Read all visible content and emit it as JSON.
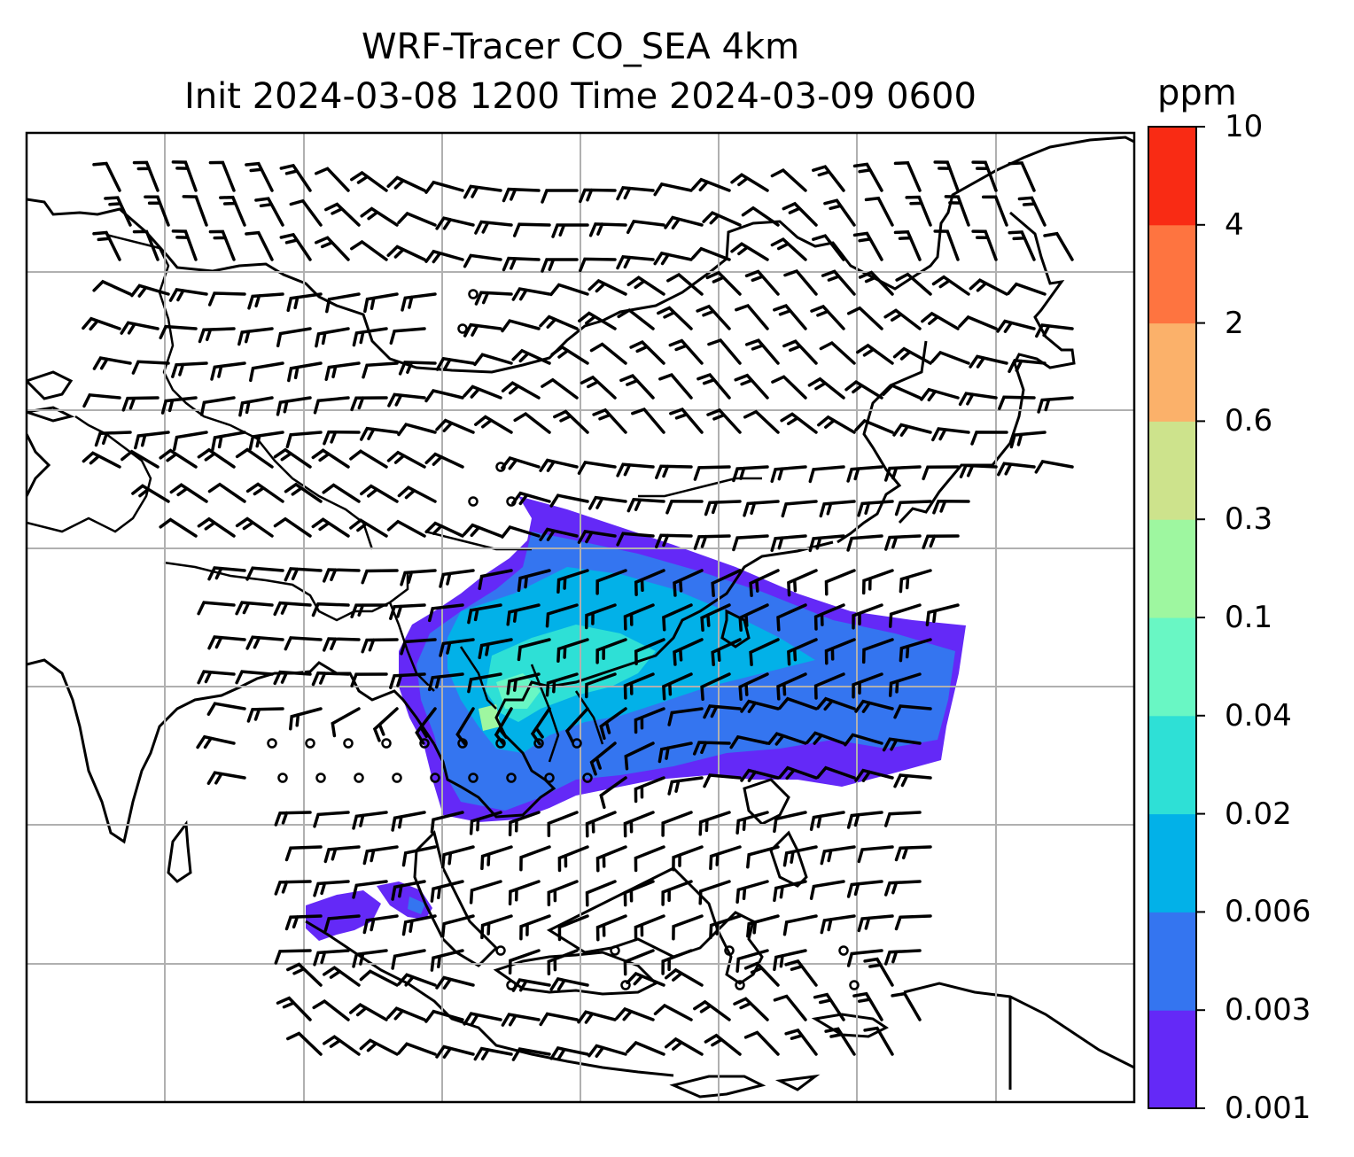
{
  "title": {
    "line1": "WRF-Tracer CO_SEA 4km",
    "line2": "Init 2024-03-08 1200 Time 2024-03-09 0600"
  },
  "colorbar": {
    "unit": "ppm",
    "levels": [
      "0.001",
      "0.003",
      "0.006",
      "0.02",
      "0.04",
      "0.1",
      "0.3",
      "0.6",
      "2",
      "4",
      "10"
    ],
    "colors": [
      "#6429f7",
      "#3475f0",
      "#02b1e8",
      "#2ee0d6",
      "#69f7c4",
      "#9ef7a0",
      "#cde38c",
      "#fbb16a",
      "#fe7440",
      "#f92b14"
    ]
  },
  "map": {
    "gridlines": true,
    "coastlines": true,
    "country_borders": true,
    "overlay": "wind-barbs",
    "field": "CO_SEA tracer concentration"
  }
}
